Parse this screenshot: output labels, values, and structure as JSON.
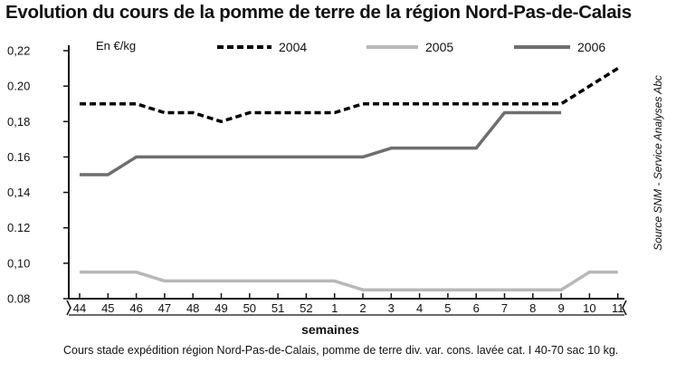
{
  "title": "Evolution du cours de la pomme de terre de la région Nord-Pas-de-Calais",
  "caption": "Cours stade expédition région Nord-Pas-de-Calais, pomme de terre div. var. cons. lavée cat. I 40-70 sac 10 kg.",
  "source": "Source SNM - Service Analyses Abc",
  "chart_data": {
    "type": "line",
    "title": "Evolution du cours de la pomme de terre de la région Nord-Pas-de-Calais",
    "ylabel": "En €/kg",
    "xlabel": "semaines",
    "ylim": [
      0.08,
      0.22
    ],
    "yticks": [
      "0,22",
      "0.20",
      "0,18",
      "0.16",
      "0,14",
      "0.12",
      "0,10",
      "0.08"
    ],
    "ytick_values": [
      0.22,
      0.2,
      0.18,
      0.16,
      0.14,
      0.12,
      0.1,
      0.08
    ],
    "categories": [
      "44",
      "45",
      "46",
      "47",
      "48",
      "49",
      "50",
      "51",
      "52",
      "1",
      "2",
      "3",
      "4",
      "5",
      "6",
      "7",
      "8",
      "9",
      "10",
      "11"
    ],
    "grid": false,
    "legend_position": "top",
    "series": [
      {
        "name": "2004",
        "style": "dashed",
        "color": "#000000",
        "values": [
          0.19,
          0.19,
          0.19,
          0.185,
          0.185,
          0.18,
          0.185,
          0.185,
          0.185,
          0.185,
          0.19,
          0.19,
          0.19,
          0.19,
          0.19,
          0.19,
          0.19,
          0.19,
          0.2,
          0.21
        ]
      },
      {
        "name": "2005",
        "style": "solid",
        "color": "#b8b8b8",
        "values": [
          0.095,
          0.095,
          0.095,
          0.09,
          0.09,
          0.09,
          0.09,
          0.09,
          0.09,
          0.09,
          0.085,
          0.085,
          0.085,
          0.085,
          0.085,
          0.085,
          0.085,
          0.085,
          0.095,
          0.095
        ]
      },
      {
        "name": "2006",
        "style": "solid",
        "color": "#6e6e6e",
        "values": [
          0.15,
          0.15,
          0.16,
          0.16,
          0.16,
          0.16,
          0.16,
          0.16,
          0.16,
          0.16,
          0.16,
          0.165,
          0.165,
          0.165,
          0.165,
          0.185,
          0.185,
          0.185,
          null,
          null
        ]
      }
    ]
  }
}
